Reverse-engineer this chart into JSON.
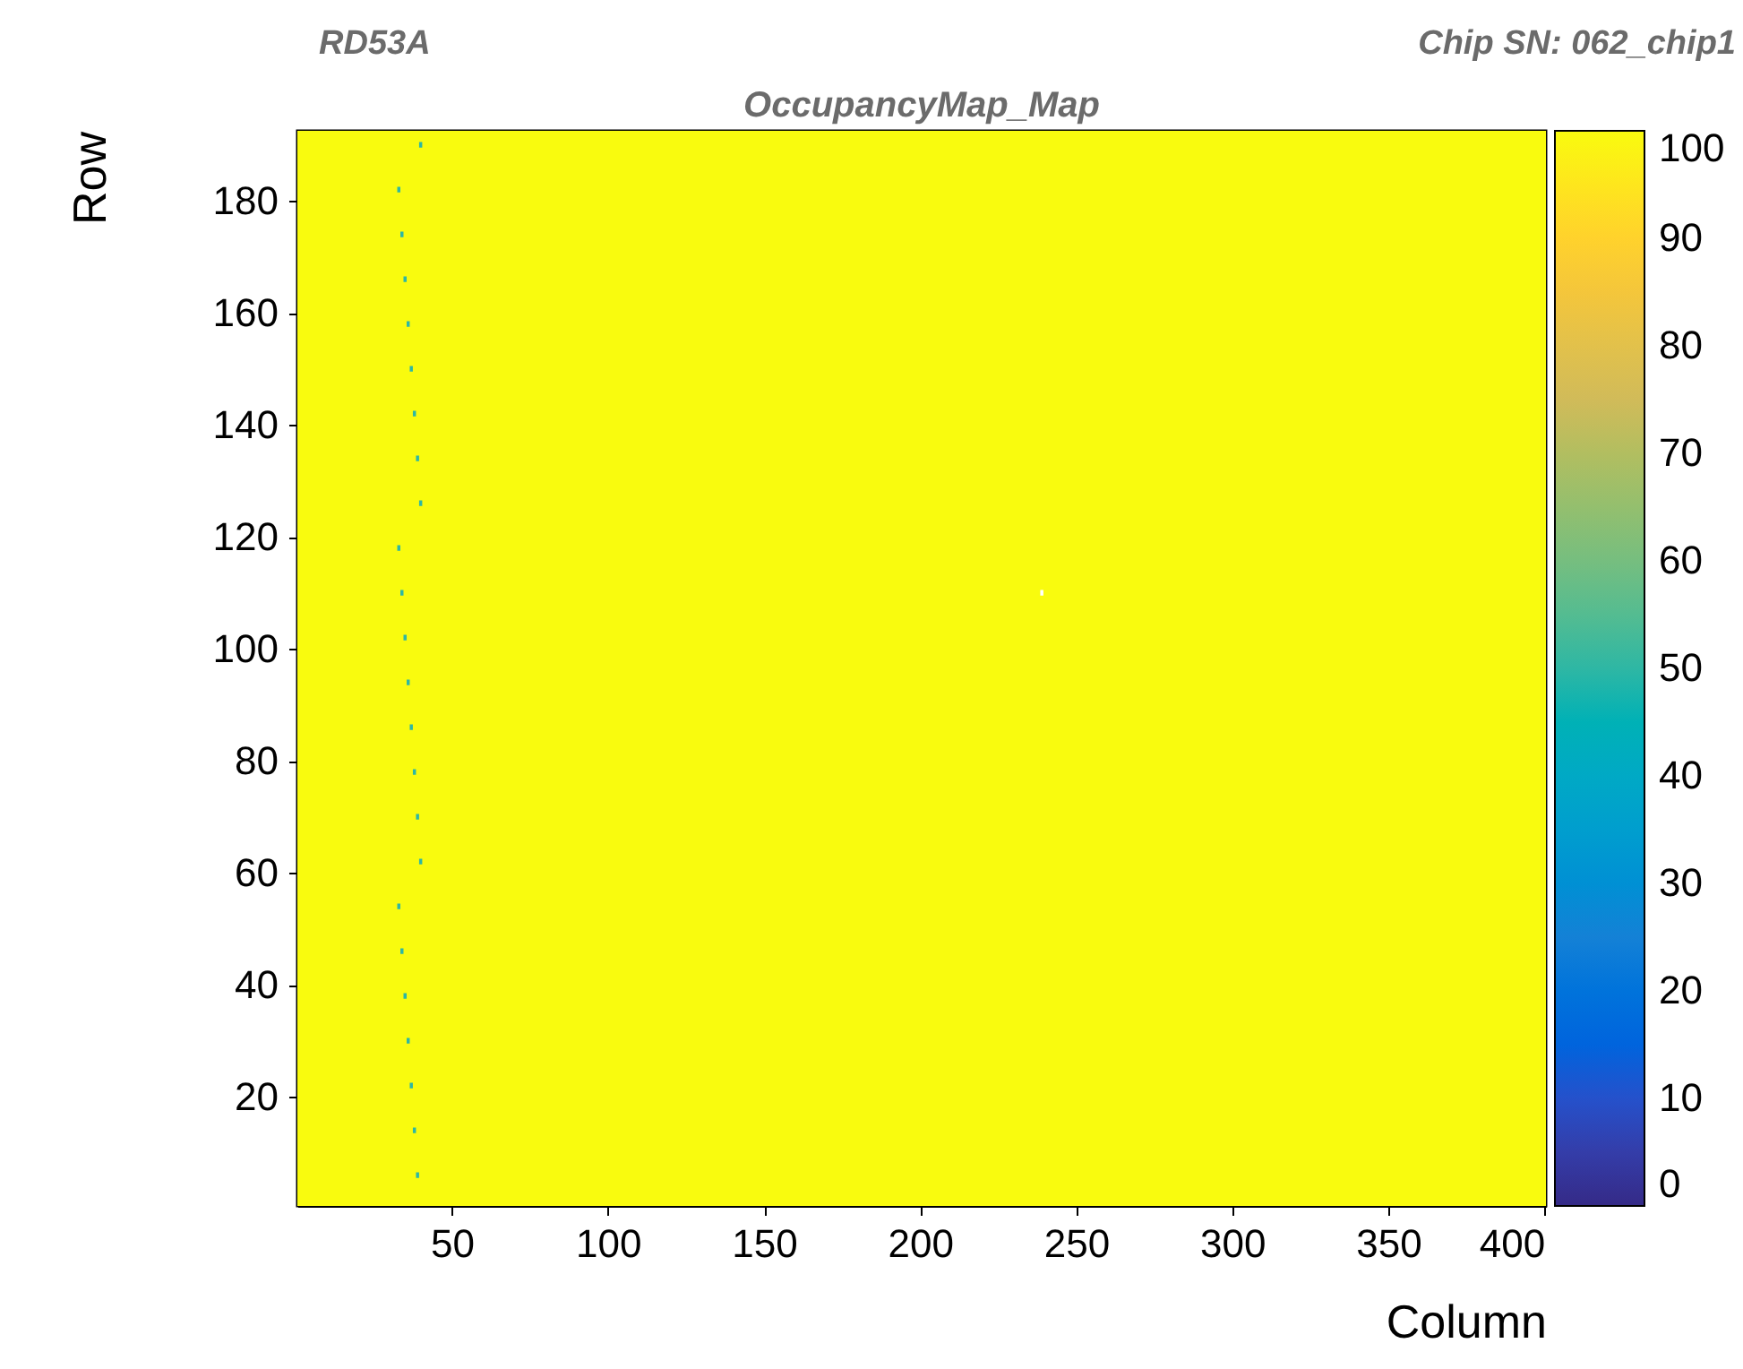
{
  "chart_data": {
    "type": "scatter",
    "title": "OccupancyMap_Map",
    "annotations": [
      "RD53A",
      "Chip SN: 062_chip1"
    ],
    "xlabel": "Column",
    "ylabel": "Row",
    "clabel": null,
    "xlim": [
      0.5,
      400.5
    ],
    "ylim": [
      0.5,
      192.5
    ],
    "xticks": [
      50,
      100,
      150,
      200,
      250,
      300,
      350,
      400
    ],
    "yticks": [
      20,
      40,
      60,
      80,
      100,
      120,
      140,
      160,
      180
    ],
    "clim": [
      0,
      100
    ],
    "cticks": [
      0,
      10,
      20,
      30,
      40,
      50,
      60,
      70,
      80,
      90,
      100
    ],
    "bands": [
      {
        "axis": "x",
        "from": 0.5,
        "to": 400.5,
        "color": "#f9fb0e"
      }
    ],
    "series": [
      {
        "x": [
          40,
          33,
          34,
          35,
          36,
          37,
          38,
          39,
          40,
          33,
          34,
          35,
          36,
          37,
          38,
          39,
          40,
          33,
          34,
          35,
          36,
          37,
          38,
          39
        ],
        "values": [
          190,
          182,
          174,
          166,
          158,
          150,
          142,
          134,
          126,
          118,
          110,
          102,
          94,
          86,
          78,
          70,
          62,
          54,
          46,
          38,
          30,
          22,
          14,
          6
        ],
        "cvalues": [
          50,
          50,
          50,
          50,
          50,
          50,
          50,
          50,
          50,
          50,
          50,
          50,
          50,
          50,
          50,
          50,
          50,
          50,
          50,
          50,
          50,
          50,
          50,
          50
        ]
      },
      {
        "x": [
          239
        ],
        "values": [
          110
        ],
        "color": "#ffffff"
      }
    ],
    "marker": "square",
    "grid": false
  }
}
